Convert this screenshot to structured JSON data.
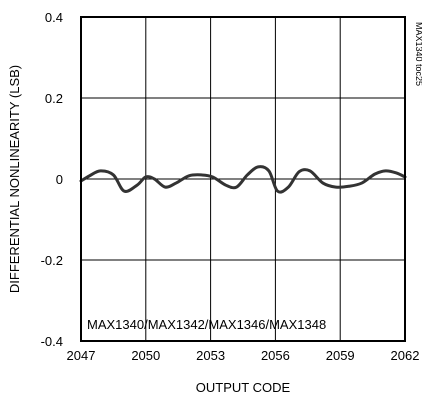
{
  "chart_data": {
    "type": "line",
    "title": "",
    "xlabel": "OUTPUT CODE",
    "ylabel": "DIFFERENTIAL NONLINEARITY (LSB)",
    "xlim": [
      2047,
      2062
    ],
    "ylim": [
      -0.4,
      0.4
    ],
    "x_ticks": [
      2047,
      2050,
      2053,
      2056,
      2059,
      2062
    ],
    "x_tick_labels": [
      "2047",
      "2050",
      "2053",
      "2056",
      "2059",
      "2062"
    ],
    "y_ticks": [
      0.4,
      0.2,
      0,
      -0.2,
      -0.4
    ],
    "y_tick_labels": [
      "0.4",
      "0.2",
      "0",
      "-0.2",
      "-0.4"
    ],
    "grid": true,
    "annotation": "MAX1340/MAX1342/MAX1346/MAX1348",
    "side_label": "MAX1340 toc25",
    "line_color": "#333333",
    "series": [
      {
        "x": [
          2047.0,
          2047.4,
          2047.9,
          2048.5,
          2049.0,
          2049.6,
          2050.0,
          2050.4,
          2050.9,
          2051.4,
          2052.0,
          2052.6,
          2053.1,
          2053.7,
          2054.2,
          2054.7,
          2055.2,
          2055.7,
          2056.1,
          2056.6,
          2057.1,
          2057.6,
          2058.2,
          2058.8,
          2059.4,
          2060.0,
          2060.6,
          2061.1,
          2061.6,
          2062.0
        ],
        "y": [
          -0.005,
          0.008,
          0.02,
          0.01,
          -0.03,
          -0.015,
          0.005,
          0.0,
          -0.02,
          -0.01,
          0.008,
          0.01,
          0.005,
          -0.015,
          -0.02,
          0.01,
          0.03,
          0.02,
          -0.03,
          -0.02,
          0.018,
          0.02,
          -0.01,
          -0.02,
          -0.018,
          -0.01,
          0.012,
          0.02,
          0.015,
          0.005
        ]
      }
    ]
  }
}
